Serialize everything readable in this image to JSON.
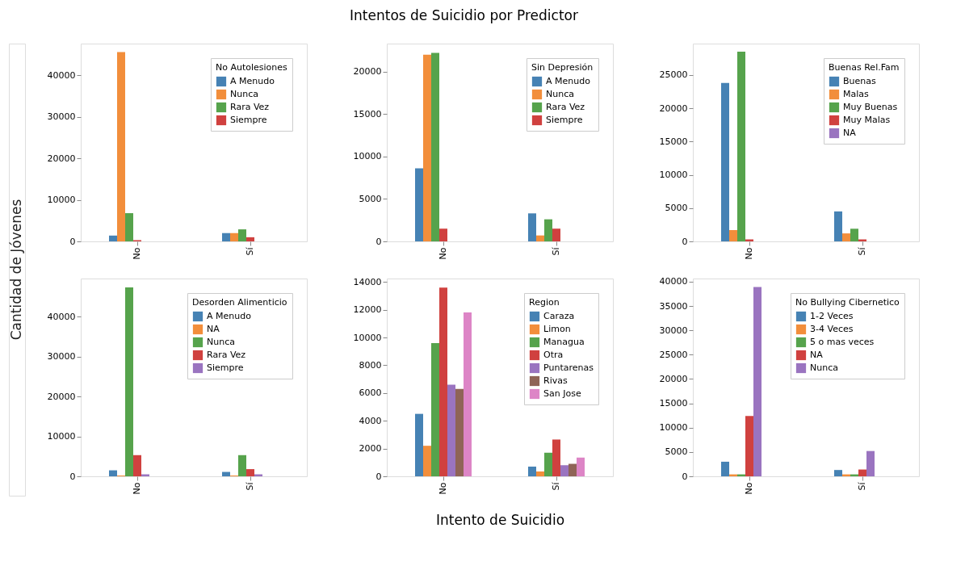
{
  "chart_data": [
    {
      "type": "bar",
      "ylabel": "Cantidad de Jóvenes",
      "legend_title": "No Autolesiones",
      "categories": [
        "No",
        "Sí"
      ],
      "ylim": [
        0,
        47650
      ],
      "yticks": [
        0,
        10000,
        20000,
        30000,
        40000
      ],
      "legend": "top right",
      "grid": false,
      "series": [
        {
          "name": "A Menudo",
          "color": "#4682b4",
          "values": [
            1400,
            2000
          ]
        },
        {
          "name": "Nunca",
          "color": "#f28e3b",
          "values": [
            45600,
            2000
          ]
        },
        {
          "name": "Rara Vez",
          "color": "#56a34c",
          "values": [
            6800,
            2900
          ]
        },
        {
          "name": "Siempre",
          "color": "#d0413f",
          "values": [
            300,
            1000
          ]
        }
      ]
    },
    {
      "type": "bar",
      "title": "Intentos de Suicidio por Predictor",
      "legend_title": "Sin Depresión",
      "categories": [
        "No",
        "Sí"
      ],
      "ylim": [
        0,
        23300
      ],
      "yticks": [
        0,
        5000,
        10000,
        15000,
        20000
      ],
      "legend": "top right",
      "grid": false,
      "series": [
        {
          "name": "A Menudo",
          "color": "#4682b4",
          "values": [
            8600,
            3300
          ]
        },
        {
          "name": "Nunca",
          "color": "#f28e3b",
          "values": [
            22000,
            700
          ]
        },
        {
          "name": "Rara Vez",
          "color": "#56a34c",
          "values": [
            22200,
            2600
          ]
        },
        {
          "name": "Siempre",
          "color": "#d0413f",
          "values": [
            1500,
            1500
          ]
        }
      ]
    },
    {
      "type": "bar",
      "legend_title": "Buenas Rel.Fam",
      "categories": [
        "No",
        "Sí"
      ],
      "ylim": [
        0,
        29700
      ],
      "yticks": [
        0,
        5000,
        10000,
        15000,
        20000,
        25000
      ],
      "legend": "top right",
      "grid": false,
      "series": [
        {
          "name": "Buenas",
          "color": "#4682b4",
          "values": [
            23800,
            4500
          ]
        },
        {
          "name": "Malas",
          "color": "#f28e3b",
          "values": [
            1700,
            1200
          ]
        },
        {
          "name": "Muy Buenas",
          "color": "#56a34c",
          "values": [
            28500,
            1900
          ]
        },
        {
          "name": "Muy Malas",
          "color": "#d0413f",
          "values": [
            300,
            300
          ]
        },
        {
          "name": "NA",
          "color": "#9a74c0",
          "values": [
            0,
            0
          ]
        }
      ]
    },
    {
      "type": "bar",
      "legend_title": "Desorden Alimenticio",
      "categories": [
        "No",
        "Sí"
      ],
      "ylim": [
        0,
        49500
      ],
      "yticks": [
        0,
        10000,
        20000,
        30000,
        40000
      ],
      "legend": "top right",
      "grid": false,
      "series": [
        {
          "name": "A Menudo",
          "color": "#4682b4",
          "values": [
            1500,
            1100
          ]
        },
        {
          "name": "NA",
          "color": "#f28e3b",
          "values": [
            200,
            200
          ]
        },
        {
          "name": "Nunca",
          "color": "#56a34c",
          "values": [
            47300,
            5300
          ]
        },
        {
          "name": "Rara Vez",
          "color": "#d0413f",
          "values": [
            5300,
            1800
          ]
        },
        {
          "name": "Siempre",
          "color": "#9a74c0",
          "values": [
            500,
            500
          ]
        }
      ]
    },
    {
      "type": "bar",
      "xlabel": "Intento de Suicidio",
      "legend_title": "Region",
      "categories": [
        "No",
        "Sí"
      ],
      "ylim": [
        0,
        14250
      ],
      "yticks": [
        0,
        2000,
        4000,
        6000,
        8000,
        10000,
        12000,
        14000
      ],
      "legend": "top right",
      "grid": false,
      "series": [
        {
          "name": "Caraza",
          "color": "#4682b4",
          "values": [
            4500,
            700
          ]
        },
        {
          "name": "Limon",
          "color": "#f28e3b",
          "values": [
            2200,
            350
          ]
        },
        {
          "name": "Managua",
          "color": "#56a34c",
          "values": [
            9600,
            1700
          ]
        },
        {
          "name": "Otra",
          "color": "#d0413f",
          "values": [
            13600,
            2650
          ]
        },
        {
          "name": "Puntarenas",
          "color": "#9a74c0",
          "values": [
            6600,
            800
          ]
        },
        {
          "name": "Rivas",
          "color": "#8f6457",
          "values": [
            6300,
            900
          ]
        },
        {
          "name": "San Jose",
          "color": "#dd85c6",
          "values": [
            11800,
            1350
          ]
        }
      ]
    },
    {
      "type": "bar",
      "legend_title": "No Bullying Cibernetico",
      "categories": [
        "No",
        "Sí"
      ],
      "ylim": [
        0,
        40650
      ],
      "yticks": [
        0,
        5000,
        10000,
        15000,
        20000,
        25000,
        30000,
        35000,
        40000
      ],
      "legend": "top right",
      "grid": false,
      "series": [
        {
          "name": "1-2 Veces",
          "color": "#4682b4",
          "values": [
            3000,
            1300
          ]
        },
        {
          "name": "3-4 Veces",
          "color": "#f28e3b",
          "values": [
            400,
            400
          ]
        },
        {
          "name": "5 o mas veces",
          "color": "#56a34c",
          "values": [
            400,
            400
          ]
        },
        {
          "name": "NA",
          "color": "#d0413f",
          "values": [
            12400,
            1400
          ]
        },
        {
          "name": "Nunca",
          "color": "#9a74c0",
          "values": [
            38900,
            5200
          ]
        }
      ]
    }
  ]
}
